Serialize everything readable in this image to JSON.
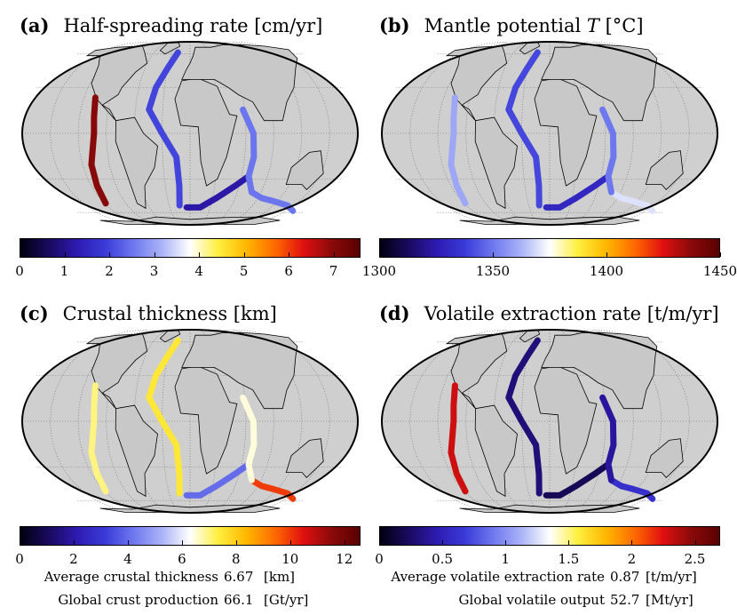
{
  "panels": [
    {
      "label": "(a)",
      "title": "Half-spreading rate [cm/yr]",
      "cb": {
        "min": 0,
        "max": 7.6,
        "ticks": [
          "0",
          "1",
          "2",
          "3",
          "4",
          "5",
          "6",
          "7"
        ],
        "tick_values": [
          0,
          1,
          2,
          3,
          4,
          5,
          6,
          7
        ]
      },
      "ridge_values": {
        "mar": 2.0,
        "epr": 7.0,
        "sea": 2.5,
        "swir": 1.2,
        "cir": 2.5
      }
    },
    {
      "label": "(b)",
      "title": "Mantle potential ",
      "title_var": "T",
      "title_unit": " [°C]",
      "cb": {
        "min": 1300,
        "max": 1450,
        "ticks": [
          "1300",
          "1350",
          "1400",
          "1450"
        ],
        "tick_values": [
          1300,
          1350,
          1400,
          1450
        ]
      },
      "ridge_values": {
        "mar": 1340,
        "epr": 1360,
        "sea": 1370,
        "swir": 1330,
        "cir": 1350
      }
    },
    {
      "label": "(c)",
      "title": "Crustal thickness [km]",
      "cb": {
        "min": 0,
        "max": 12.6,
        "ticks": [
          "0",
          "2",
          "4",
          "6",
          "8",
          "10",
          "12"
        ],
        "tick_values": [
          0,
          2,
          4,
          6,
          8,
          10,
          12
        ]
      },
      "ridge_values": {
        "mar": 7.5,
        "epr": 7.0,
        "sea": 10.0,
        "swir": 4.0,
        "cir": 6.5
      },
      "stats": [
        {
          "label": "Average crustal thickness",
          "value": "6.67",
          "unit": "[km]"
        },
        {
          "label": "Global crust production",
          "value": "66.1",
          "unit": "[Gt/yr]"
        }
      ]
    },
    {
      "label": "(d)",
      "title": "Volatile extraction rate [t/m/yr]",
      "cb": {
        "min": 0,
        "max": 2.7,
        "ticks": [
          "0",
          "0.5",
          "1",
          "1.5",
          "2",
          "2.5"
        ],
        "tick_values": [
          0,
          0.5,
          1,
          1.5,
          2,
          2.5
        ]
      },
      "ridge_values": {
        "mar": 0.3,
        "epr": 2.3,
        "sea": 0.6,
        "swir": 0.2,
        "cir": 0.4
      },
      "stats": [
        {
          "label": "Average volatile extraction rate",
          "value": "0.87",
          "unit": "[t/m/yr]"
        },
        {
          "label": "Global volatile output",
          "value": "52.7",
          "unit": "[Mt/yr]"
        }
      ]
    }
  ],
  "chart_data": [
    {
      "type": "map",
      "title": "(a) Half-spreading rate [cm/yr]",
      "colorbar_range": [
        0,
        7.6
      ],
      "colorbar_ticks": [
        0,
        1,
        2,
        3,
        4,
        5,
        6,
        7
      ]
    },
    {
      "type": "map",
      "title": "(b) Mantle potential T [°C]",
      "colorbar_range": [
        1300,
        1450
      ],
      "colorbar_ticks": [
        1300,
        1350,
        1400,
        1450
      ]
    },
    {
      "type": "map",
      "title": "(c) Crustal thickness [km]",
      "colorbar_range": [
        0,
        12.6
      ],
      "colorbar_ticks": [
        0,
        2,
        4,
        6,
        8,
        10,
        12
      ]
    },
    {
      "type": "map",
      "title": "(d) Volatile extraction rate [t/m/yr]",
      "colorbar_range": [
        0,
        2.7
      ],
      "colorbar_ticks": [
        0,
        0.5,
        1,
        1.5,
        2,
        2.5
      ]
    }
  ],
  "colormap": [
    "#000010",
    "#1a0a5e",
    "#2d1ab0",
    "#3a3ad8",
    "#6e78ee",
    "#aab3f7",
    "#ffffff",
    "#ffef40",
    "#ffb700",
    "#ff6a00",
    "#e01010",
    "#8b0a0a",
    "#5a0000"
  ],
  "land_color": "#c8c8c8"
}
